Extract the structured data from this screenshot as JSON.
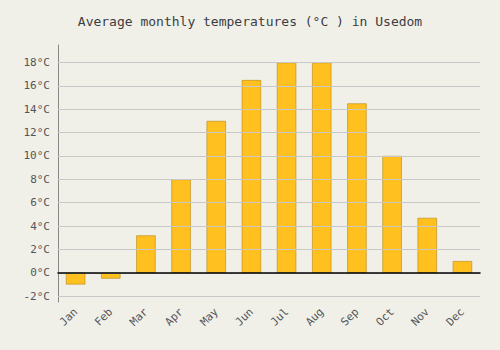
{
  "chart_data": {
    "type": "bar",
    "title": "Average monthly temperatures (°C ) in Usedom",
    "categories": [
      "Jan",
      "Feb",
      "Mar",
      "Apr",
      "May",
      "Jun",
      "Jul",
      "Aug",
      "Sep",
      "Oct",
      "Nov",
      "Dec"
    ],
    "values": [
      -1.0,
      -0.5,
      3.2,
      8.0,
      13.0,
      16.5,
      18.0,
      18.0,
      14.5,
      10.0,
      4.7,
      1.0
    ],
    "color": "#FFC020",
    "ylim": [
      -2.5,
      19.5
    ],
    "yticks": [
      {
        "value": -2,
        "label": "-2°C"
      },
      {
        "value": 0,
        "label": "0°C"
      },
      {
        "value": 2,
        "label": "2°C"
      },
      {
        "value": 4,
        "label": "4°C"
      },
      {
        "value": 6,
        "label": "6°C"
      },
      {
        "value": 8,
        "label": "8°C"
      },
      {
        "value": 10,
        "label": "10°C"
      },
      {
        "value": 12,
        "label": "12°C"
      },
      {
        "value": 14,
        "label": "14°C"
      },
      {
        "value": 16,
        "label": "16°C"
      },
      {
        "value": 18,
        "label": "18°C"
      }
    ],
    "grid": true
  }
}
